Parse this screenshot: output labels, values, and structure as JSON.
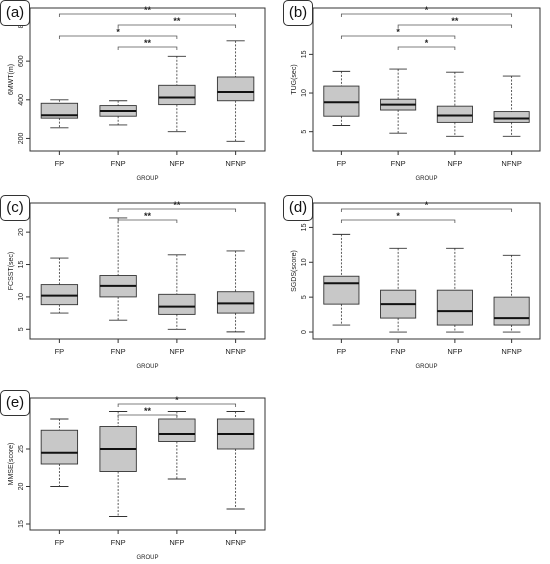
{
  "chart_data": [
    {
      "type": "box",
      "panel_label": "(a)",
      "xlabel": "GROUP",
      "ylabel": "6MWT(m)",
      "categories": [
        "FP",
        "FNP",
        "NFP",
        "NFNP"
      ],
      "yticks": [
        "200",
        "400",
        "600",
        "800"
      ],
      "ylim": [
        135,
        875
      ],
      "boxes": [
        {
          "min": 255,
          "q1": 305,
          "median": 320,
          "q3": 382,
          "max": 400
        },
        {
          "min": 270,
          "q1": 315,
          "median": 342,
          "q3": 370,
          "max": 395
        },
        {
          "min": 235,
          "q1": 375,
          "median": 412,
          "q3": 475,
          "max": 625
        },
        {
          "min": 185,
          "q1": 395,
          "median": 440,
          "q3": 518,
          "max": 705
        }
      ],
      "brackets": [
        {
          "from": 0,
          "to": 3,
          "label": "**"
        },
        {
          "from": 1,
          "to": 3,
          "label": "**"
        },
        {
          "from": 0,
          "to": 2,
          "label": "*"
        },
        {
          "from": 1,
          "to": 2,
          "label": "**"
        }
      ]
    },
    {
      "type": "box",
      "panel_label": "(b)",
      "xlabel": "GROUP",
      "ylabel": "TUG(sec)",
      "categories": [
        "FP",
        "FNP",
        "NFP",
        "NFNP"
      ],
      "yticks": [
        "5",
        "10",
        "15",
        "20"
      ],
      "ylim": [
        2.5,
        21
      ],
      "boxes": [
        {
          "min": 5.8,
          "q1": 7.0,
          "median": 8.8,
          "q3": 10.9,
          "max": 12.8
        },
        {
          "min": 4.8,
          "q1": 7.8,
          "median": 8.5,
          "q3": 9.2,
          "max": 13.1
        },
        {
          "min": 4.4,
          "q1": 6.2,
          "median": 7.1,
          "q3": 8.3,
          "max": 12.7
        },
        {
          "min": 4.4,
          "q1": 6.2,
          "median": 6.7,
          "q3": 7.6,
          "max": 12.2
        }
      ],
      "brackets": [
        {
          "from": 0,
          "to": 3,
          "label": "*"
        },
        {
          "from": 1,
          "to": 3,
          "label": "**"
        },
        {
          "from": 0,
          "to": 2,
          "label": "*"
        },
        {
          "from": 1,
          "to": 2,
          "label": "*"
        }
      ]
    },
    {
      "type": "box",
      "panel_label": "(c)",
      "xlabel": "GROUP",
      "ylabel": "FCSST(sec)",
      "categories": [
        "FP",
        "FNP",
        "NFP",
        "NFNP"
      ],
      "yticks": [
        "5",
        "10",
        "15",
        "20"
      ],
      "ylim": [
        3.5,
        24.5
      ],
      "boxes": [
        {
          "min": 7.5,
          "q1": 8.8,
          "median": 10.2,
          "q3": 11.9,
          "max": 16.0
        },
        {
          "min": 6.4,
          "q1": 10.0,
          "median": 11.7,
          "q3": 13.3,
          "max": 22.2
        },
        {
          "min": 5.0,
          "q1": 7.3,
          "median": 8.5,
          "q3": 10.4,
          "max": 16.5
        },
        {
          "min": 4.6,
          "q1": 7.5,
          "median": 9.0,
          "q3": 10.8,
          "max": 17.1
        }
      ],
      "brackets": [
        {
          "from": 1,
          "to": 3,
          "label": "**"
        },
        {
          "from": 1,
          "to": 2,
          "label": "**"
        }
      ]
    },
    {
      "type": "box",
      "panel_label": "(d)",
      "xlabel": "GROUP",
      "ylabel": "SGDS(score)",
      "categories": [
        "FP",
        "FNP",
        "NFP",
        "NFNP"
      ],
      "yticks": [
        "0",
        "5",
        "10",
        "15"
      ],
      "ylim": [
        -1,
        18.5
      ],
      "boxes": [
        {
          "min": 1,
          "q1": 4,
          "median": 7,
          "q3": 8,
          "max": 14
        },
        {
          "min": 0,
          "q1": 2,
          "median": 4,
          "q3": 6,
          "max": 12
        },
        {
          "min": 0,
          "q1": 1,
          "median": 3,
          "q3": 6,
          "max": 12
        },
        {
          "min": 0,
          "q1": 1,
          "median": 2,
          "q3": 5,
          "max": 11
        }
      ],
      "brackets": [
        {
          "from": 0,
          "to": 3,
          "label": "*"
        },
        {
          "from": 0,
          "to": 2,
          "label": "*"
        }
      ]
    },
    {
      "type": "box",
      "panel_label": "(e)",
      "xlabel": "GROUP",
      "ylabel": "MMSE(score)",
      "categories": [
        "FP",
        "FNP",
        "NFP",
        "NFNP"
      ],
      "yticks": [
        "15",
        "20",
        "25",
        "30"
      ],
      "ylim": [
        14.2,
        31.8
      ],
      "boxes": [
        {
          "min": 20,
          "q1": 23,
          "median": 24.5,
          "q3": 27.5,
          "max": 29
        },
        {
          "min": 16,
          "q1": 22,
          "median": 25,
          "q3": 28,
          "max": 30
        },
        {
          "min": 21,
          "q1": 26,
          "median": 27,
          "q3": 29,
          "max": 30
        },
        {
          "min": 17,
          "q1": 25,
          "median": 27,
          "q3": 29,
          "max": 30
        }
      ],
      "brackets": [
        {
          "from": 1,
          "to": 3,
          "label": "*"
        },
        {
          "from": 1,
          "to": 2,
          "label": "**"
        }
      ]
    }
  ],
  "colors": {
    "box_fill": "#c8c8c8",
    "stroke": "#333333",
    "bracket": "#555555"
  }
}
